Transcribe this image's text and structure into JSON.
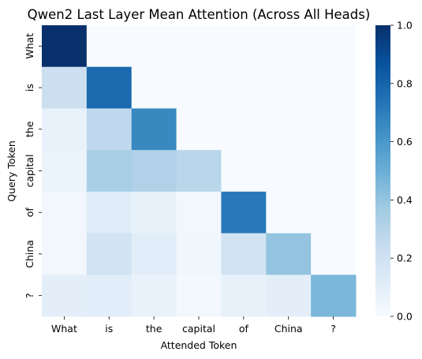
{
  "chart_data": {
    "type": "heatmap",
    "title": "Qwen2 Last Layer Mean Attention (Across All Heads)",
    "xlabel": "Attended Token",
    "ylabel": "Query Token",
    "x_categories": [
      "What",
      "is",
      "the",
      "capital",
      "of",
      "China",
      "?"
    ],
    "y_categories": [
      "What",
      "is",
      "the",
      "capital",
      "of",
      "China",
      "?"
    ],
    "values": [
      [
        1.0,
        0.0,
        0.0,
        0.0,
        0.0,
        0.0,
        0.0
      ],
      [
        0.22,
        0.78,
        0.0,
        0.0,
        0.0,
        0.0,
        0.0
      ],
      [
        0.07,
        0.27,
        0.66,
        0.0,
        0.0,
        0.0,
        0.0
      ],
      [
        0.06,
        0.34,
        0.32,
        0.29,
        0.0,
        0.0,
        0.0
      ],
      [
        0.03,
        0.12,
        0.08,
        0.03,
        0.72,
        0.0,
        0.0
      ],
      [
        0.03,
        0.19,
        0.11,
        0.04,
        0.19,
        0.4,
        0.0
      ],
      [
        0.1,
        0.11,
        0.07,
        0.02,
        0.08,
        0.1,
        0.46
      ]
    ],
    "colorbar": {
      "colormap": "Blues",
      "range": [
        0.0,
        1.0
      ],
      "ticks": [
        "0.0",
        "0.2",
        "0.4",
        "0.6",
        "0.8",
        "1.0"
      ]
    },
    "grid": false,
    "legend": "colorbar-right"
  }
}
